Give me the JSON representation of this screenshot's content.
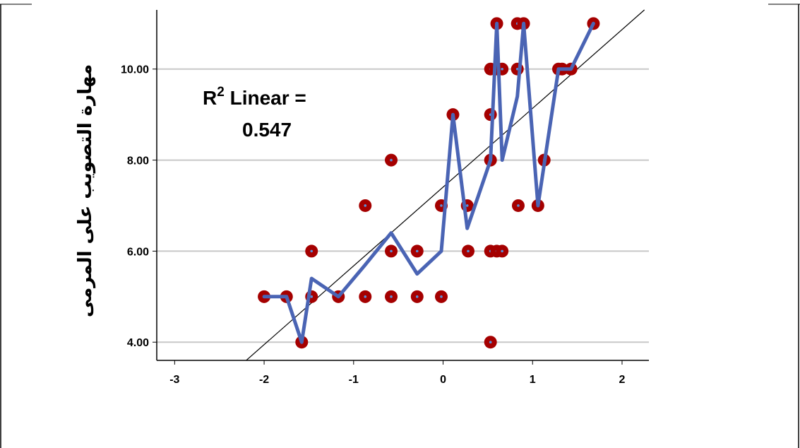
{
  "chart_data": {
    "type": "scatter",
    "title": "",
    "xlabel": "",
    "ylabel": "مهارة التصويب على المرمى",
    "xlim": [
      -3.2,
      2.3
    ],
    "ylim": [
      3.6,
      11.3
    ],
    "x_ticks": [
      "-3",
      "-2",
      "-1",
      "0",
      "1",
      "2"
    ],
    "x_tick_values": [
      -3,
      -2,
      -1,
      0,
      1,
      2
    ],
    "y_ticks": [
      "4.00",
      "6.00",
      "8.00",
      "10.00"
    ],
    "y_tick_values": [
      4,
      6,
      8,
      10
    ],
    "grid": "horizontal",
    "annotation": {
      "r_label": "R",
      "r_superscript": "2",
      "linear_text": " Linear =",
      "value": "0.547"
    },
    "colors": {
      "points": "#a50000",
      "point_center": "#5a8fd8",
      "line": "#4a64b4",
      "fit": "#000000",
      "grid": "#c8c8c8"
    },
    "series": [
      {
        "type": "scatter",
        "points": [
          [
            -2.0,
            5
          ],
          [
            -1.75,
            5
          ],
          [
            -1.58,
            4
          ],
          [
            -1.47,
            6
          ],
          [
            -1.47,
            5
          ],
          [
            -1.17,
            5
          ],
          [
            -0.87,
            5
          ],
          [
            -0.87,
            7
          ],
          [
            -0.58,
            8
          ],
          [
            -0.58,
            6
          ],
          [
            -0.58,
            5
          ],
          [
            -0.29,
            6
          ],
          [
            -0.29,
            5
          ],
          [
            -0.02,
            5
          ],
          [
            -0.02,
            7
          ],
          [
            0.11,
            9
          ],
          [
            0.27,
            7
          ],
          [
            0.28,
            6
          ],
          [
            0.53,
            4
          ],
          [
            0.53,
            6
          ],
          [
            0.53,
            8
          ],
          [
            0.53,
            9
          ],
          [
            0.53,
            10
          ],
          [
            0.59,
            10
          ],
          [
            0.6,
            11
          ],
          [
            0.6,
            6
          ],
          [
            0.66,
            10
          ],
          [
            0.66,
            6
          ],
          [
            0.83,
            11
          ],
          [
            0.83,
            10
          ],
          [
            0.84,
            7
          ],
          [
            0.9,
            11
          ],
          [
            1.06,
            7
          ],
          [
            1.13,
            8
          ],
          [
            1.29,
            10
          ],
          [
            1.33,
            10
          ],
          [
            1.43,
            10
          ],
          [
            1.68,
            11
          ]
        ]
      },
      {
        "type": "line",
        "points": [
          [
            -2.0,
            5
          ],
          [
            -1.75,
            5
          ],
          [
            -1.58,
            4
          ],
          [
            -1.47,
            5.4
          ],
          [
            -1.17,
            5
          ],
          [
            -0.87,
            5.7
          ],
          [
            -0.58,
            6.4
          ],
          [
            -0.29,
            5.5
          ],
          [
            -0.02,
            6
          ],
          [
            0.11,
            9
          ],
          [
            0.27,
            6.5
          ],
          [
            0.53,
            8
          ],
          [
            0.6,
            11
          ],
          [
            0.66,
            8
          ],
          [
            0.83,
            9.4
          ],
          [
            0.9,
            11
          ],
          [
            1.06,
            7
          ],
          [
            1.29,
            10
          ],
          [
            1.43,
            10
          ],
          [
            1.68,
            11
          ]
        ]
      },
      {
        "type": "fit",
        "points": [
          [
            -2.2,
            3.6
          ],
          [
            2.25,
            11.3
          ]
        ]
      }
    ]
  }
}
